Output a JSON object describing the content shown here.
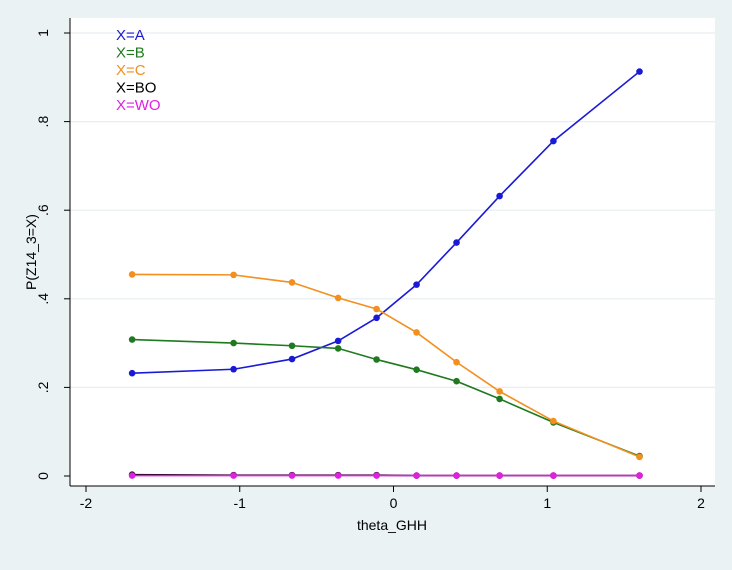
{
  "chart_data": {
    "type": "line",
    "title": "",
    "xlabel": "theta_GHH",
    "ylabel": "P(Z14_3=X)",
    "xlim": [
      -2,
      2
    ],
    "ylim": [
      0,
      1
    ],
    "x_ticks": [
      -2,
      -1,
      0,
      1,
      2
    ],
    "x_tick_labels": [
      "-2",
      "-1",
      "0",
      "1",
      "2"
    ],
    "y_ticks": [
      0,
      0.2,
      0.4,
      0.6,
      0.8,
      1
    ],
    "y_tick_labels": [
      "0",
      ".2",
      ".4",
      ".6",
      ".8",
      "1"
    ],
    "grid": "horizontal",
    "legend_position": "top-left",
    "x": [
      -1.7,
      -1.04,
      -0.66,
      -0.36,
      -0.11,
      0.15,
      0.41,
      0.69,
      1.04,
      1.6
    ],
    "series": [
      {
        "name": "X=A",
        "color": "#1a1ad6",
        "values": [
          0.232,
          0.241,
          0.264,
          0.305,
          0.357,
          0.432,
          0.527,
          0.632,
          0.756,
          0.913
        ]
      },
      {
        "name": "X=B",
        "color": "#1f7a1f",
        "values": [
          0.308,
          0.3,
          0.294,
          0.288,
          0.263,
          0.24,
          0.214,
          0.174,
          0.121,
          0.045
        ]
      },
      {
        "name": "X=C",
        "color": "#f28f1e",
        "values": [
          0.455,
          0.454,
          0.437,
          0.402,
          0.377,
          0.324,
          0.257,
          0.191,
          0.124,
          0.043
        ]
      },
      {
        "name": "X=BO",
        "color": "#000000",
        "values": [
          0.003,
          0.002,
          0.002,
          0.002,
          0.002,
          0.001,
          0.001,
          0.001,
          0.001,
          0.001
        ]
      },
      {
        "name": "X=WO",
        "color": "#e020e0",
        "values": [
          0.001,
          0.001,
          0.001,
          0.001,
          0.001,
          0.001,
          0.001,
          0.001,
          0.001,
          0.001
        ]
      }
    ]
  }
}
